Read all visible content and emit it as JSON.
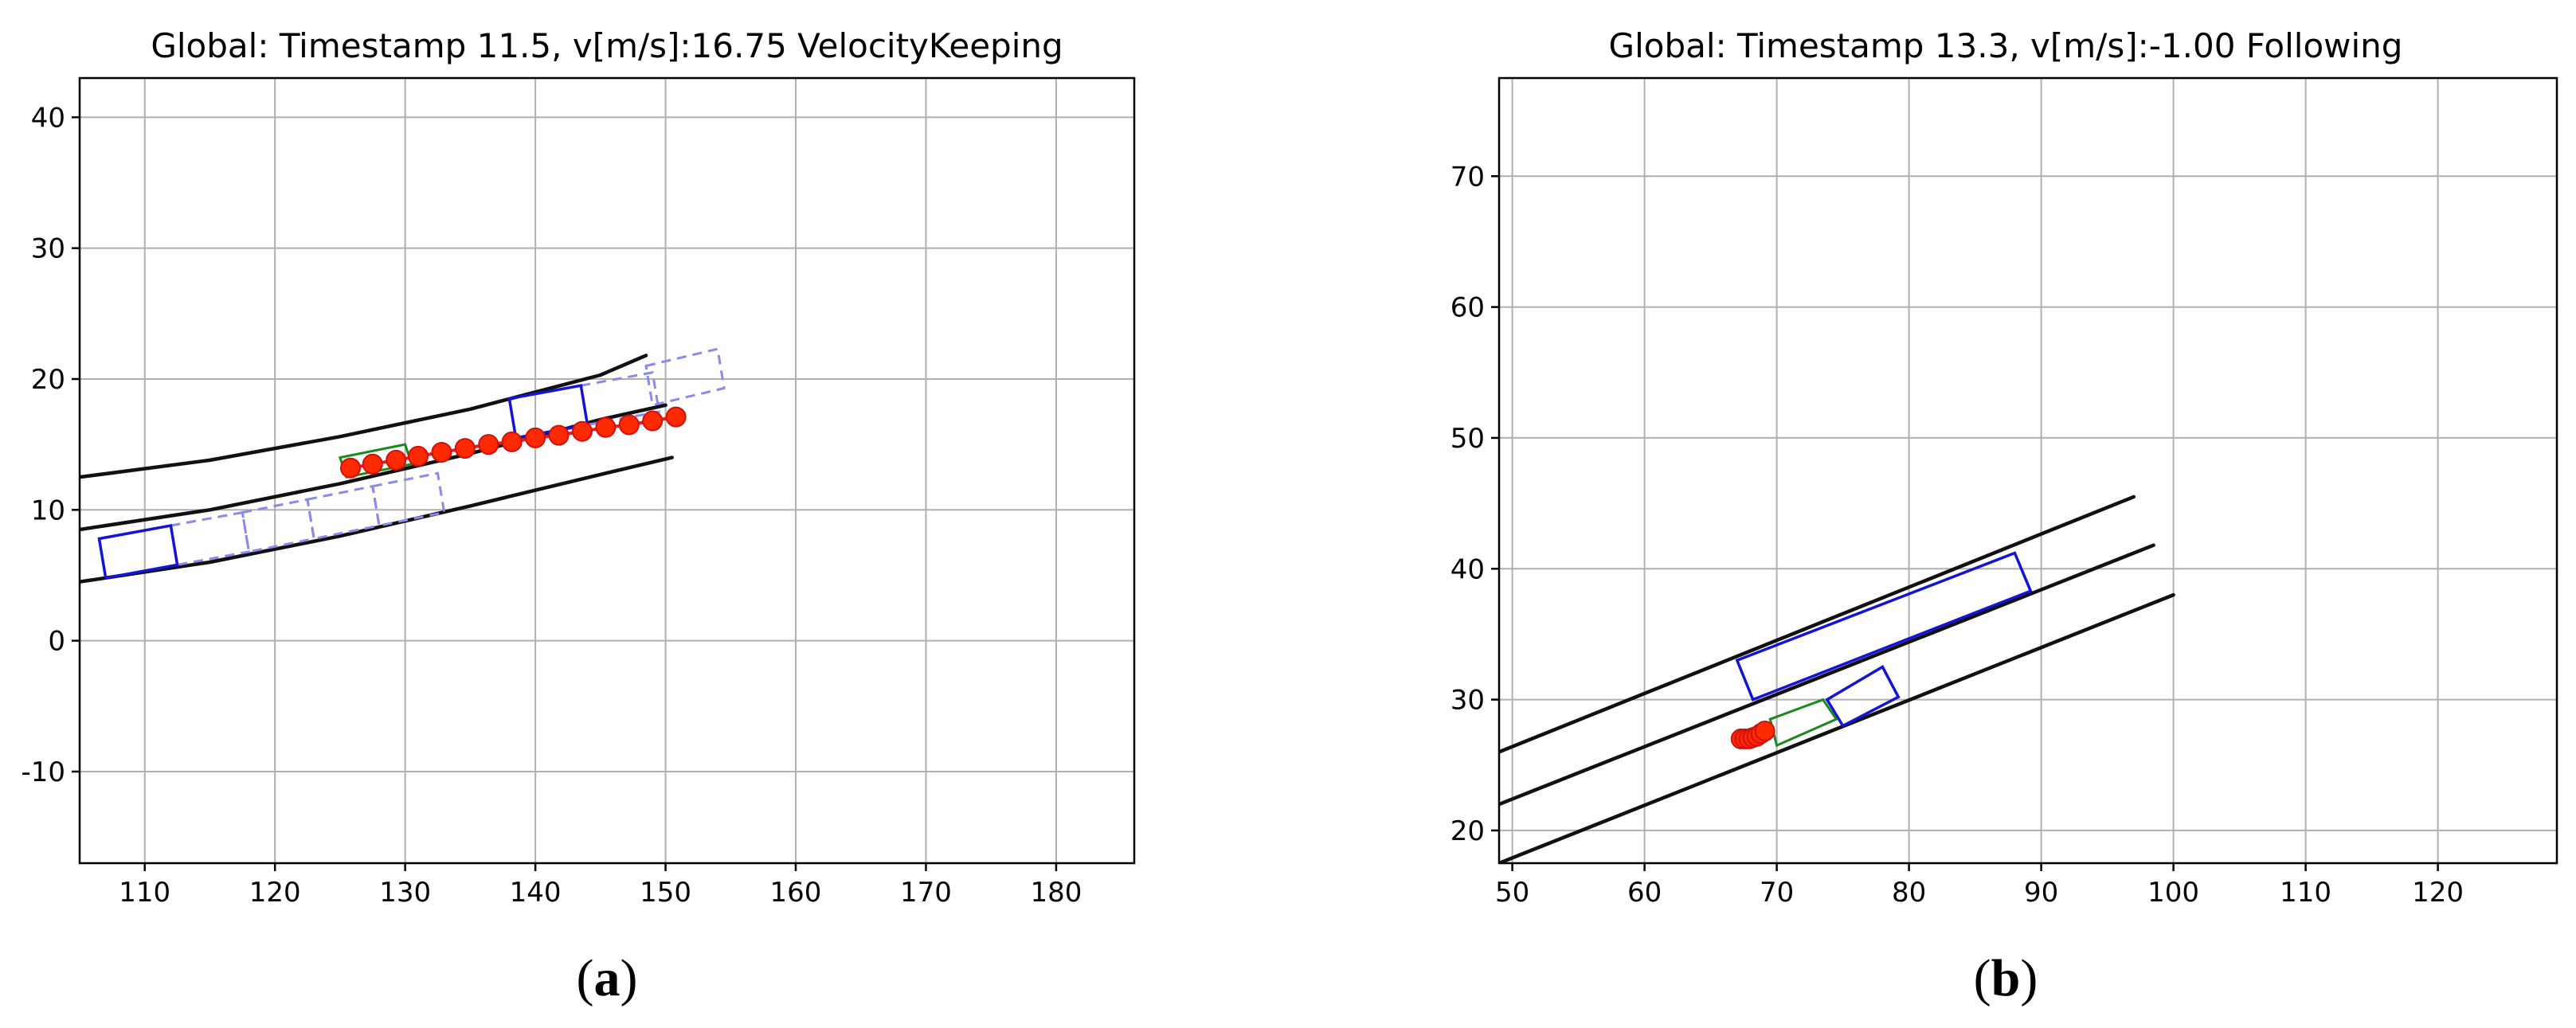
{
  "chart_data": [
    {
      "type": "scatter",
      "panel": "a",
      "caption": "a",
      "title": "Global: Timestamp  11.5, v[m/s]:16.75 VelocityKeeping",
      "xlim": [
        105,
        186
      ],
      "ylim": [
        -17,
        43
      ],
      "xticks": [
        110,
        120,
        130,
        140,
        150,
        160,
        170,
        180
      ],
      "yticks": [
        -10,
        0,
        10,
        20,
        30,
        40
      ],
      "grid": true,
      "lane_lines": [
        [
          [
            105,
            12.5
          ],
          [
            115,
            13.8
          ],
          [
            125,
            15.6
          ],
          [
            135,
            17.7
          ],
          [
            145,
            20.3
          ],
          [
            148.5,
            21.8
          ]
        ],
        [
          [
            105,
            8.5
          ],
          [
            115,
            10.0
          ],
          [
            125,
            12.0
          ],
          [
            135,
            14.3
          ],
          [
            145,
            16.9
          ],
          [
            150,
            18.0
          ]
        ],
        [
          [
            105,
            4.5
          ],
          [
            115,
            6.0
          ],
          [
            125,
            8.0
          ],
          [
            135,
            10.3
          ],
          [
            145,
            12.7
          ],
          [
            150.5,
            14.0
          ]
        ]
      ],
      "vehicles_solid": [
        [
          [
            106.5,
            7.8
          ],
          [
            112.0,
            8.8
          ],
          [
            112.5,
            5.8
          ],
          [
            107.0,
            4.8
          ]
        ],
        [
          [
            138.0,
            18.5
          ],
          [
            143.5,
            19.5
          ],
          [
            144.0,
            16.5
          ],
          [
            138.5,
            15.5
          ]
        ]
      ],
      "vehicles_dashed": [
        [
          [
            112.0,
            8.8
          ],
          [
            117.5,
            9.8
          ],
          [
            118.0,
            6.8
          ],
          [
            112.5,
            5.8
          ]
        ],
        [
          [
            117.5,
            9.8
          ],
          [
            122.5,
            10.8
          ],
          [
            123.0,
            7.8
          ],
          [
            118.0,
            6.8
          ]
        ],
        [
          [
            122.5,
            10.8
          ],
          [
            127.5,
            11.8
          ],
          [
            128.0,
            8.8
          ],
          [
            123.0,
            7.8
          ]
        ],
        [
          [
            127.5,
            11.8
          ],
          [
            132.5,
            12.8
          ],
          [
            133.0,
            9.8
          ],
          [
            128.0,
            8.8
          ]
        ],
        [
          [
            143.5,
            19.5
          ],
          [
            149.0,
            20.5
          ],
          [
            149.5,
            17.5
          ],
          [
            144.0,
            16.5
          ]
        ],
        [
          [
            148.5,
            21.0
          ],
          [
            154.0,
            22.3
          ],
          [
            154.5,
            19.3
          ],
          [
            149.0,
            18.0
          ]
        ]
      ],
      "ego_box": [
        [
          125.0,
          14.0
        ],
        [
          130.0,
          15.0
        ],
        [
          130.5,
          13.5
        ],
        [
          125.5,
          12.5
        ]
      ],
      "trajectory": {
        "x": [
          125.8,
          127.5,
          129.3,
          131.0,
          132.8,
          134.6,
          136.4,
          138.2,
          140.0,
          141.8,
          143.6,
          145.4,
          147.2,
          149.0,
          150.8
        ],
        "y": [
          13.2,
          13.5,
          13.8,
          14.1,
          14.4,
          14.7,
          15.0,
          15.2,
          15.5,
          15.7,
          16.0,
          16.3,
          16.5,
          16.8,
          17.1
        ]
      }
    },
    {
      "type": "scatter",
      "panel": "b",
      "caption": "b",
      "title": "Global: Timestamp  13.3, v[m/s]:-1.00 Following",
      "xlim": [
        49,
        129
      ],
      "ylim": [
        17.5,
        77.5
      ],
      "xticks": [
        50,
        60,
        70,
        80,
        90,
        100,
        110,
        120
      ],
      "yticks": [
        20,
        30,
        40,
        50,
        60,
        70
      ],
      "grid": true,
      "lane_lines": [
        [
          [
            49,
            26.0
          ],
          [
            97,
            45.5
          ]
        ],
        [
          [
            49,
            22.0
          ],
          [
            98.5,
            41.8
          ]
        ],
        [
          [
            49,
            17.5
          ],
          [
            100,
            38.0
          ]
        ]
      ],
      "vehicles_solid": [
        [
          [
            67.0,
            33.0
          ],
          [
            88.0,
            41.2
          ],
          [
            89.2,
            38.3
          ],
          [
            68.2,
            30.0
          ]
        ],
        [
          [
            73.8,
            30.0
          ],
          [
            78.0,
            32.5
          ],
          [
            79.2,
            30.2
          ],
          [
            75.0,
            28.0
          ]
        ]
      ],
      "vehicles_dashed": [],
      "ego_box": [
        [
          69.5,
          28.5
        ],
        [
          73.5,
          30.0
        ],
        [
          74.5,
          28.5
        ],
        [
          70.0,
          26.5
        ]
      ],
      "trajectory": {
        "x": [
          67.3,
          67.6,
          67.9,
          68.2,
          68.5,
          68.8,
          69.1
        ],
        "y": [
          27.0,
          27.0,
          27.0,
          27.1,
          27.2,
          27.4,
          27.6
        ]
      }
    }
  ]
}
